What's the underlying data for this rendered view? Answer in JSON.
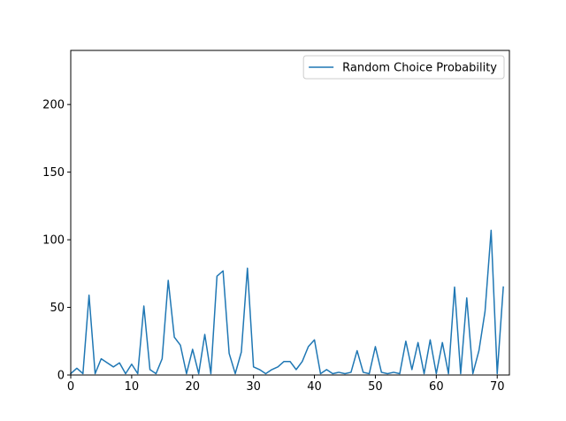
{
  "chart_data": {
    "type": "line",
    "title": "",
    "xlabel": "",
    "ylabel": "",
    "xlim": [
      0,
      72
    ],
    "ylim": [
      0,
      240
    ],
    "xticks": [
      0,
      10,
      20,
      30,
      40,
      50,
      60,
      70
    ],
    "yticks": [
      0,
      50,
      100,
      150,
      200
    ],
    "grid": false,
    "legend": {
      "position": "top-right"
    },
    "series": [
      {
        "name": "Random Choice Probability",
        "color": "#1f77b4",
        "x": [
          0,
          1,
          2,
          3,
          4,
          5,
          6,
          7,
          8,
          9,
          10,
          11,
          12,
          13,
          14,
          15,
          16,
          17,
          18,
          19,
          20,
          21,
          22,
          23,
          24,
          25,
          26,
          27,
          28,
          29,
          30,
          31,
          32,
          33,
          34,
          35,
          36,
          37,
          38,
          39,
          40,
          41,
          42,
          43,
          44,
          45,
          46,
          47,
          48,
          49,
          50,
          51,
          52,
          53,
          54,
          55,
          56,
          57,
          58,
          59,
          60,
          61,
          62,
          63,
          64,
          65,
          66,
          67,
          68,
          69,
          70,
          71
        ],
        "values": [
          1,
          5,
          1,
          59,
          1,
          12,
          9,
          6,
          9,
          1,
          8,
          1,
          51,
          4,
          1,
          12,
          70,
          28,
          22,
          1,
          19,
          1,
          30,
          1,
          73,
          77,
          16,
          1,
          17,
          79,
          6,
          4,
          1,
          4,
          6,
          10,
          10,
          4,
          10,
          21,
          26,
          1,
          4,
          1,
          2,
          1,
          2,
          18,
          2,
          1,
          21,
          2,
          1,
          2,
          1,
          25,
          4,
          24,
          1,
          26,
          1,
          24,
          1,
          65,
          1,
          57,
          1,
          18,
          47,
          107,
          1,
          65
        ]
      }
    ]
  }
}
